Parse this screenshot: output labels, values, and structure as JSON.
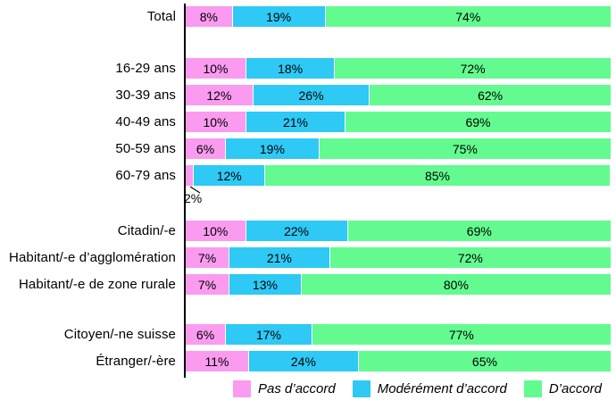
{
  "chart_data": {
    "type": "bar",
    "orientation": "horizontal",
    "stacked": true,
    "value_suffix": "%",
    "grid": false,
    "axis_color": "#000000",
    "label_color": "#000000",
    "legend_position": "bottom",
    "categories": [
      "Total",
      "16-29 ans",
      "30-39 ans",
      "40-49 ans",
      "50-59 ans",
      "60-79 ans",
      "Citadin/-e",
      "Habitant/-e d’agglomération",
      "Habitant/-e de zone rurale",
      "Citoyen/-ne suisse",
      "Étranger/-ère"
    ],
    "groups": [
      [
        0
      ],
      [
        1,
        2,
        3,
        4,
        5
      ],
      [
        6,
        7,
        8
      ],
      [
        9,
        10
      ]
    ],
    "series": [
      {
        "name": "Pas d’accord",
        "color": "#FA9BF0",
        "values": [
          8,
          10,
          12,
          10,
          6,
          2,
          10,
          7,
          7,
          6,
          11
        ]
      },
      {
        "name": "Modérément d’accord",
        "color": "#2EC9F5",
        "values": [
          19,
          18,
          26,
          21,
          19,
          12,
          22,
          21,
          13,
          17,
          24
        ]
      },
      {
        "name": "D’accord",
        "color": "#63FB90",
        "values": [
          74,
          72,
          62,
          69,
          75,
          85,
          69,
          72,
          80,
          77,
          65
        ]
      }
    ],
    "outside_label": {
      "row": 5,
      "series": 0,
      "text": "2%"
    },
    "xlim": [
      0,
      100
    ]
  }
}
